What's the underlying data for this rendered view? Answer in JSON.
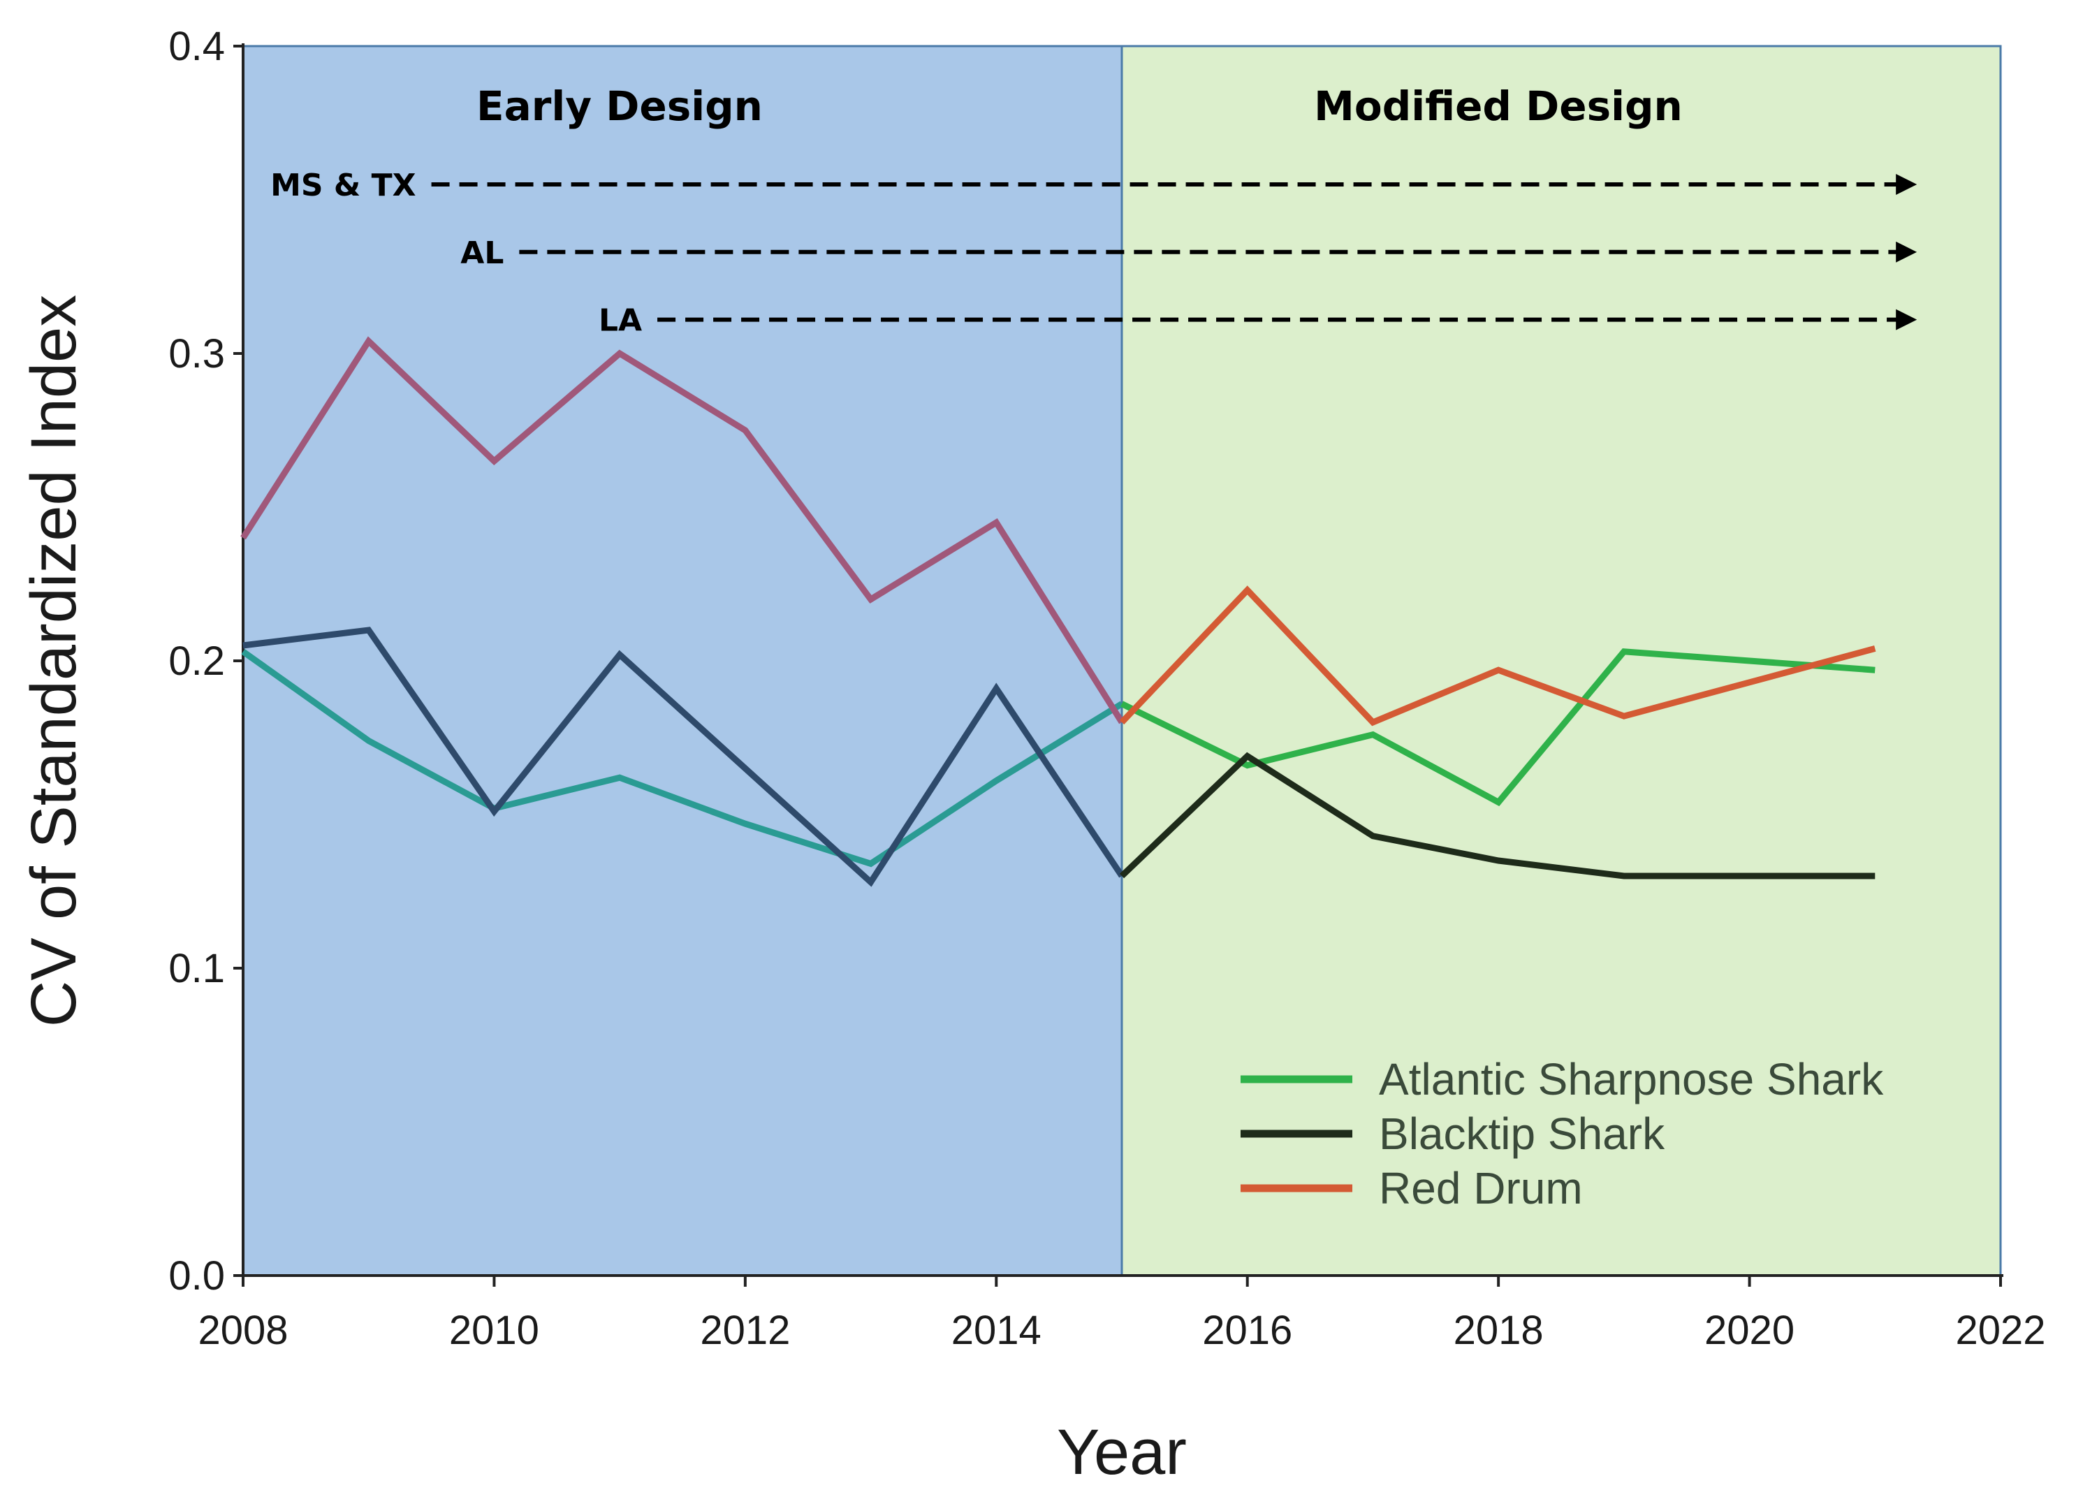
{
  "chart_data": {
    "type": "line",
    "title": "",
    "xlabel": "Year",
    "ylabel": "CV of Standardized Index",
    "xlim": [
      2008,
      2022
    ],
    "ylim": [
      0.0,
      0.4
    ],
    "x_ticks": [
      "2008",
      "2010",
      "2012",
      "2014",
      "2016",
      "2018",
      "2020",
      "2022"
    ],
    "y_ticks": [
      "0.0",
      "0.1",
      "0.2",
      "0.3",
      "0.4"
    ],
    "regions": [
      {
        "name": "Early Design",
        "from": 2008,
        "to": 2015,
        "color": "#a9c7e8"
      },
      {
        "name": "Modified Design",
        "from": 2015,
        "to": 2022,
        "color": "#dcefcc"
      }
    ],
    "state_arrows": [
      {
        "label": "MS & TX",
        "start_year": 2009.5,
        "end_year": 2021.3,
        "y": 0.355
      },
      {
        "label": "AL",
        "start_year": 2010.2,
        "end_year": 2021.3,
        "y": 0.333
      },
      {
        "label": "LA",
        "start_year": 2011.3,
        "end_year": 2021.3,
        "y": 0.311
      }
    ],
    "series": [
      {
        "name": "Atlantic Sharpnose Shark",
        "early_color": "#2a9b93",
        "color": "#2fb24a",
        "in_legend": true,
        "x": [
          2008,
          2009,
          2010,
          2011,
          2012,
          2013,
          2014,
          2015,
          2016,
          2017,
          2018,
          2019,
          2020,
          2021
        ],
        "values": [
          0.203,
          0.174,
          0.152,
          0.162,
          0.147,
          0.134,
          0.161,
          0.186,
          0.166,
          0.176,
          0.154,
          0.203,
          0.2,
          0.197
        ]
      },
      {
        "name": "Blacktip Shark",
        "early_color": "#2e4a6b",
        "color": "#1e2b1a",
        "in_legend": true,
        "x": [
          2008,
          2009,
          2010,
          2011,
          2012,
          2013,
          2014,
          2015,
          2016,
          2017,
          2018,
          2019,
          2020,
          2021
        ],
        "values": [
          0.205,
          0.21,
          0.151,
          0.202,
          0.165,
          0.128,
          0.191,
          0.13,
          0.169,
          0.143,
          0.135,
          0.13,
          0.13,
          0.13
        ]
      },
      {
        "name": "Red Drum",
        "early_color": "#a0587a",
        "color": "#d45a34",
        "in_legend": true,
        "x": [
          2008,
          2009,
          2010,
          2011,
          2012,
          2013,
          2014,
          2015,
          2016,
          2017,
          2018,
          2019,
          2020,
          2021
        ],
        "values": [
          0.24,
          0.304,
          0.265,
          0.3,
          0.275,
          0.22,
          0.245,
          0.18,
          0.223,
          0.18,
          0.197,
          0.182,
          0.193,
          0.204
        ]
      }
    ],
    "legend": {
      "position": "bottom-right"
    }
  }
}
